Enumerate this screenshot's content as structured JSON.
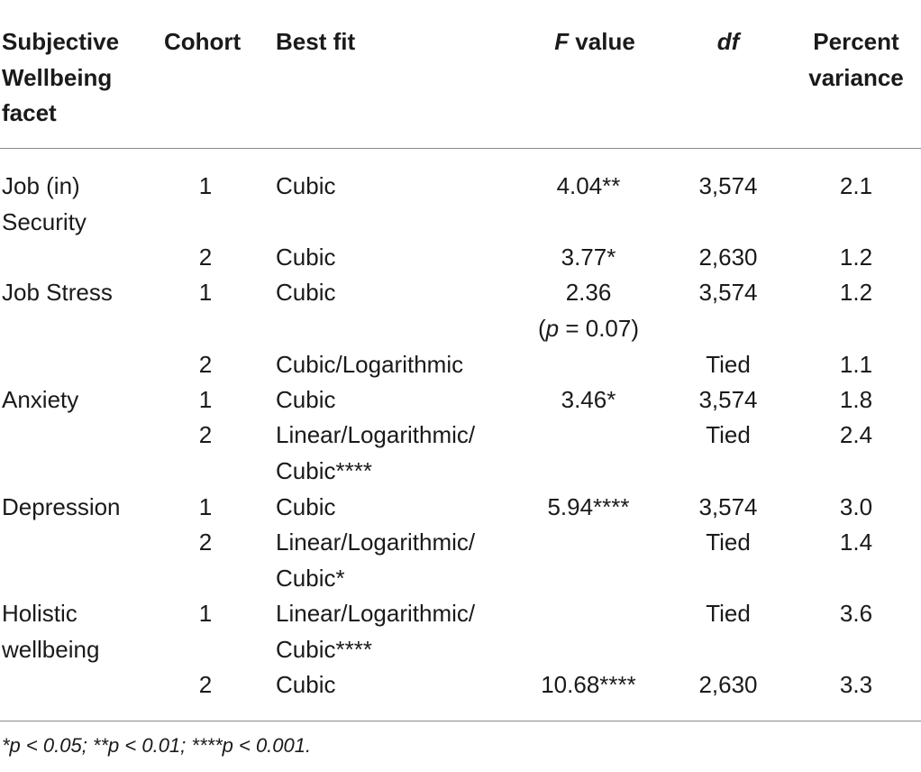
{
  "headers": {
    "facet": "Subjective Wellbeing facet",
    "cohort": "Cohort",
    "best_fit": "Best fit",
    "f_value_italic": "F",
    "f_value_rest": " value",
    "df": "df",
    "percent_variance": "Percent variance"
  },
  "rows": [
    {
      "facet": "Job (in) Security",
      "cohort": "1",
      "best_fit": "Cubic",
      "f_value": "4.04**",
      "df": "3,574",
      "pv": "2.1"
    },
    {
      "facet": "",
      "cohort": "2",
      "best_fit": "Cubic",
      "f_value": "3.77*",
      "df": "2,630",
      "pv": "1.2"
    },
    {
      "facet": "Job Stress",
      "cohort": "1",
      "best_fit": "Cubic",
      "f_value": "2.36",
      "f_value_line2_p": "p",
      "f_value_line2_rest": " = 0.07)",
      "df": "3,574",
      "pv": "1.2"
    },
    {
      "facet": "",
      "cohort": "2",
      "best_fit": "Cubic/Logarithmic",
      "f_value": "",
      "df": "Tied",
      "pv": "1.1"
    },
    {
      "facet": "Anxiety",
      "cohort": "1",
      "best_fit": "Cubic",
      "f_value": "3.46*",
      "df": "3,574",
      "pv": "1.8"
    },
    {
      "facet": "",
      "cohort": "2",
      "best_fit": "Linear/Logarithmic/ Cubic****",
      "f_value": "",
      "df": "Tied",
      "pv": "2.4"
    },
    {
      "facet": "Depression",
      "cohort": "1",
      "best_fit": "Cubic",
      "f_value": "5.94****",
      "df": "3,574",
      "pv": "3.0"
    },
    {
      "facet": "",
      "cohort": "2",
      "best_fit": "Linear/Logarithmic/ Cubic*",
      "f_value": "",
      "df": "Tied",
      "pv": "1.4"
    },
    {
      "facet": "Holistic wellbeing",
      "cohort": "1",
      "best_fit": "Linear/Logarithmic/ Cubic****",
      "f_value": "",
      "df": "Tied",
      "pv": "3.6"
    },
    {
      "facet": "",
      "cohort": "2",
      "best_fit": "Cubic",
      "f_value": "10.68****",
      "df": "2,630",
      "pv": "3.3"
    }
  ],
  "footnote": "*p < 0.05; **p < 0.01; ****p < 0.001."
}
